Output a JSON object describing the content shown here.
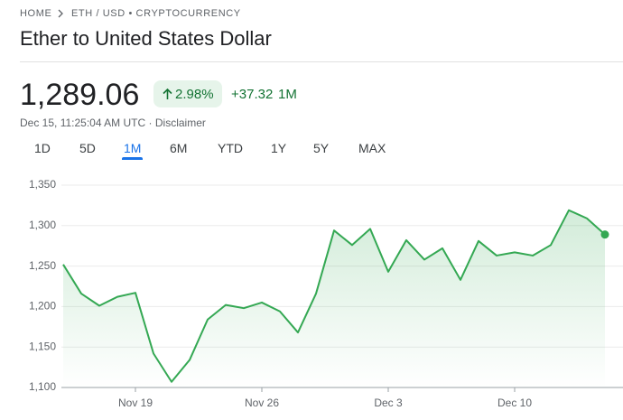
{
  "breadcrumb": [
    "HOME",
    "ETH / USD • CRYPTOCURRENCY"
  ],
  "title": "Ether to United States Dollar",
  "price": "1,289.06",
  "change_percent": "2.98%",
  "change": "+37.32",
  "change_period": "1M",
  "timestamp": "Dec 15, 11:25:04 AM UTC",
  "separator": "·",
  "disclaimer": "Disclaimer",
  "tabs": [
    "1D",
    "5D",
    "1M",
    "6M",
    "YTD",
    "1Y",
    "5Y",
    "MAX"
  ],
  "active_tab": "1M",
  "chart_data": {
    "type": "line",
    "categories": [
      null,
      null,
      null,
      null,
      "Nov 19",
      null,
      null,
      null,
      null,
      null,
      null,
      "Nov 26",
      null,
      null,
      null,
      null,
      null,
      null,
      "Dec 3",
      null,
      null,
      null,
      null,
      null,
      null,
      "Dec 10",
      null,
      null,
      null,
      null,
      null
    ],
    "series": [
      {
        "color": "#34a853",
        "values": [
          1252,
          1216,
          1201,
          1212,
          1217,
          1142,
          1107,
          1134,
          1184,
          1202,
          1198,
          1205,
          1194,
          1168,
          1216,
          1294,
          1276,
          1296,
          1243,
          1282,
          1258,
          1272,
          1233,
          1281,
          1263,
          1267,
          1263,
          1276,
          1319,
          1309,
          1289
        ]
      }
    ],
    "ylim": [
      1100,
      1350
    ],
    "yticks": [
      {
        "value": 1100,
        "label": "1,100"
      },
      {
        "value": 1150,
        "label": "1,150"
      },
      {
        "value": 1200,
        "label": "1,200"
      },
      {
        "value": 1250,
        "label": "1,250"
      },
      {
        "value": 1300,
        "label": "1,300"
      },
      {
        "value": 1350,
        "label": "1,350"
      }
    ],
    "grid": true
  }
}
